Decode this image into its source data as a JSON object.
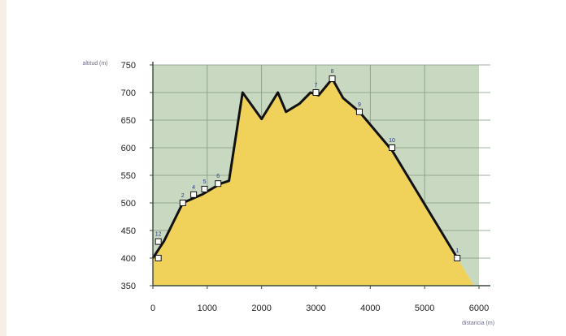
{
  "colors": {
    "sky": "#c9d8c0",
    "fill": "#f0d25a",
    "profile": "#111111",
    "grid": "#7f9a7f",
    "axis": "#3a4a3a",
    "marker_fill": "#ffffff"
  },
  "chart_data": {
    "type": "area",
    "title": "",
    "xlabel": "distancia (m)",
    "ylabel": "altitud (m)",
    "xlim": [
      0,
      6000
    ],
    "ylim": [
      350,
      750
    ],
    "x_ticks": [
      0,
      1000,
      2000,
      3000,
      4000,
      5000,
      6000
    ],
    "x_tick_labels": [
      "0",
      "1000",
      "2000",
      "3000",
      "4000",
      "5000",
      "6000"
    ],
    "y_ticks": [
      350,
      400,
      450,
      500,
      550,
      600,
      650,
      700,
      750
    ],
    "y_tick_labels": [
      "350",
      "400",
      "450",
      "500",
      "550",
      "600",
      "650",
      "700",
      "750"
    ],
    "grid": true,
    "profile": {
      "x": [
        0,
        200,
        550,
        900,
        1250,
        1400,
        1650,
        2000,
        2300,
        2450,
        2700,
        2900,
        3050,
        3300,
        3500,
        3800,
        4400,
        5600
      ],
      "y": [
        400,
        430,
        500,
        515,
        535,
        540,
        700,
        652,
        700,
        665,
        680,
        700,
        695,
        725,
        690,
        665,
        595,
        400
      ]
    },
    "waypoints": [
      {
        "label": "12",
        "x": 100,
        "y": 430
      },
      {
        "label": "2",
        "x": 550,
        "y": 500
      },
      {
        "label": "4",
        "x": 750,
        "y": 515
      },
      {
        "label": "5",
        "x": 950,
        "y": 525
      },
      {
        "label": "6",
        "x": 1200,
        "y": 535
      },
      {
        "label": "7",
        "x": 3000,
        "y": 700
      },
      {
        "label": "8",
        "x": 3300,
        "y": 725
      },
      {
        "label": "9",
        "x": 3800,
        "y": 665
      },
      {
        "label": "10",
        "x": 4400,
        "y": 600
      },
      {
        "label": "1",
        "x": 5600,
        "y": 400
      }
    ],
    "extra_markers": [
      {
        "x": 100,
        "y": 400
      }
    ]
  }
}
